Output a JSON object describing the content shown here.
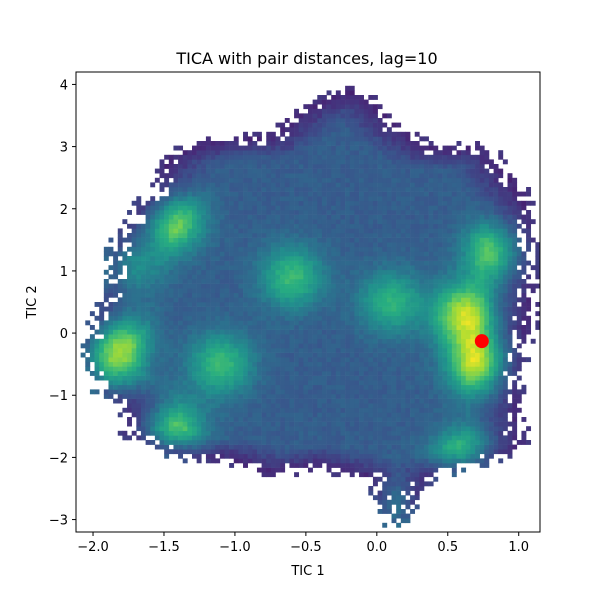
{
  "chart_data": {
    "type": "heatmap",
    "title": "TICA with pair distances, lag=10",
    "xlabel": "TIC 1",
    "ylabel": "TIC 2",
    "xlim": [
      -2.12,
      1.15
    ],
    "ylim": [
      -3.2,
      4.2
    ],
    "xticks": [
      "−2.0",
      "−1.5",
      "−1.0",
      "−0.5",
      "0.0",
      "0.5",
      "1.0"
    ],
    "xtick_values": [
      -2.0,
      -1.5,
      -1.0,
      -0.5,
      0.0,
      0.5,
      1.0
    ],
    "yticks": [
      "−3",
      "−2",
      "−1",
      "0",
      "1",
      "2",
      "3",
      "4"
    ],
    "ytick_values": [
      -3,
      -2,
      -1,
      0,
      1,
      2,
      3,
      4
    ],
    "colormap": "viridis",
    "density_peaks": [
      {
        "x": 0.74,
        "y": -0.5,
        "weight": 1.0
      },
      {
        "x": 0.62,
        "y": 0.3,
        "weight": 0.85
      },
      {
        "x": 0.85,
        "y": 1.3,
        "weight": 0.75
      },
      {
        "x": -1.95,
        "y": -0.6,
        "weight": 0.95
      },
      {
        "x": -1.85,
        "y": -0.1,
        "weight": 0.8
      },
      {
        "x": -1.8,
        "y": 1.05,
        "weight": 0.8
      },
      {
        "x": -1.45,
        "y": 1.8,
        "weight": 0.75
      },
      {
        "x": -1.45,
        "y": -1.6,
        "weight": 0.7
      },
      {
        "x": -0.6,
        "y": 0.9,
        "weight": 0.55
      },
      {
        "x": -1.1,
        "y": -0.5,
        "weight": 0.55
      },
      {
        "x": 0.1,
        "y": 0.5,
        "weight": 0.5
      },
      {
        "x": 0.12,
        "y": -2.95,
        "weight": 0.7
      },
      {
        "x": 0.62,
        "y": -2.05,
        "weight": 0.7
      }
    ],
    "marker": {
      "x": 0.74,
      "y": -0.13,
      "color": "#ff0000"
    }
  }
}
